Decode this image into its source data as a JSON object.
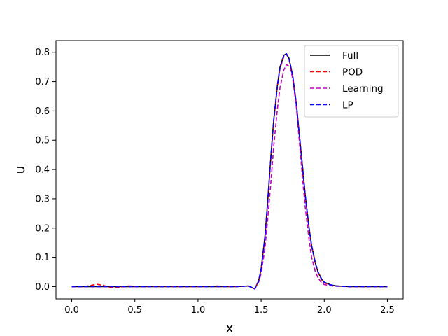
{
  "chart_data": {
    "type": "line",
    "title": "",
    "xlabel": "x",
    "ylabel": "u",
    "xlim": [
      -0.125,
      2.625
    ],
    "ylim": [
      -0.042,
      0.84
    ],
    "xticks": [
      0.0,
      0.5,
      1.0,
      1.5,
      2.0,
      2.5
    ],
    "xtick_labels": [
      "0.0",
      "0.5",
      "1.0",
      "1.5",
      "2.0",
      "2.5"
    ],
    "yticks": [
      0.0,
      0.1,
      0.2,
      0.3,
      0.4,
      0.5,
      0.6,
      0.7,
      0.8
    ],
    "ytick_labels": [
      "0.0",
      "0.1",
      "0.2",
      "0.3",
      "0.4",
      "0.5",
      "0.6",
      "0.7",
      "0.8"
    ],
    "grid": false,
    "legend_position": "top-right",
    "series": [
      {
        "name": "Full",
        "color": "#000000",
        "dashed": false,
        "x": [
          0.0,
          0.5,
          1.0,
          1.3,
          1.4,
          1.45,
          1.48,
          1.5,
          1.53,
          1.55,
          1.58,
          1.6,
          1.63,
          1.65,
          1.68,
          1.7,
          1.72,
          1.75,
          1.78,
          1.8,
          1.83,
          1.85,
          1.88,
          1.9,
          1.93,
          1.95,
          1.98,
          2.0,
          2.05,
          2.1,
          2.2,
          2.5
        ],
        "y": [
          0.0,
          0.0,
          0.0,
          0.0,
          0.002,
          -0.008,
          0.02,
          0.06,
          0.17,
          0.28,
          0.46,
          0.57,
          0.69,
          0.75,
          0.79,
          0.795,
          0.78,
          0.72,
          0.62,
          0.53,
          0.4,
          0.31,
          0.2,
          0.14,
          0.08,
          0.05,
          0.025,
          0.015,
          0.006,
          0.002,
          0.0,
          0.0
        ]
      },
      {
        "name": "POD",
        "color": "#ff0000",
        "dashed": true,
        "x": [
          0.0,
          0.1,
          0.2,
          0.25,
          0.3,
          0.35,
          0.45,
          0.55,
          0.7,
          1.0,
          1.15,
          1.2,
          1.3,
          1.4,
          1.45,
          1.48,
          1.5,
          1.53,
          1.55,
          1.58,
          1.6,
          1.63,
          1.65,
          1.68,
          1.7,
          1.72,
          1.75,
          1.78,
          1.8,
          1.83,
          1.85,
          1.88,
          1.9,
          1.93,
          1.95,
          1.98,
          2.0,
          2.05,
          2.1,
          2.2,
          2.5
        ],
        "y": [
          0.0,
          0.0,
          0.008,
          0.004,
          -0.002,
          -0.004,
          0.002,
          0.001,
          0.0,
          0.0,
          0.002,
          0.001,
          0.0,
          0.002,
          -0.008,
          0.018,
          0.058,
          0.165,
          0.275,
          0.455,
          0.565,
          0.685,
          0.745,
          0.785,
          0.793,
          0.778,
          0.718,
          0.618,
          0.528,
          0.398,
          0.308,
          0.198,
          0.138,
          0.078,
          0.048,
          0.023,
          0.013,
          0.005,
          0.002,
          0.0,
          0.0
        ]
      },
      {
        "name": "Learning",
        "color": "#bf00bf",
        "dashed": true,
        "x": [
          0.0,
          0.5,
          1.0,
          1.3,
          1.4,
          1.45,
          1.48,
          1.5,
          1.53,
          1.55,
          1.58,
          1.6,
          1.63,
          1.65,
          1.68,
          1.7,
          1.73,
          1.75,
          1.78,
          1.8,
          1.83,
          1.85,
          1.88,
          1.9,
          1.93,
          1.95,
          1.98,
          2.0,
          2.05,
          2.1,
          2.2,
          2.5
        ],
        "y": [
          0.0,
          0.0,
          0.0,
          0.0,
          0.002,
          -0.006,
          0.015,
          0.045,
          0.13,
          0.22,
          0.37,
          0.48,
          0.61,
          0.68,
          0.74,
          0.758,
          0.75,
          0.71,
          0.61,
          0.51,
          0.36,
          0.27,
          0.16,
          0.1,
          0.05,
          0.03,
          0.012,
          0.007,
          0.003,
          0.001,
          0.0,
          0.0
        ]
      },
      {
        "name": "LP",
        "color": "#0000ff",
        "dashed": true,
        "x": [
          0.0,
          0.5,
          1.0,
          1.3,
          1.4,
          1.45,
          1.48,
          1.5,
          1.53,
          1.55,
          1.58,
          1.6,
          1.63,
          1.65,
          1.68,
          1.7,
          1.72,
          1.75,
          1.78,
          1.8,
          1.83,
          1.85,
          1.88,
          1.9,
          1.93,
          1.95,
          1.98,
          2.0,
          2.05,
          2.1,
          2.2,
          2.5
        ],
        "y": [
          0.0,
          0.0,
          0.0,
          0.0,
          0.002,
          -0.008,
          0.02,
          0.06,
          0.17,
          0.28,
          0.46,
          0.57,
          0.69,
          0.75,
          0.79,
          0.795,
          0.78,
          0.72,
          0.62,
          0.53,
          0.4,
          0.31,
          0.2,
          0.14,
          0.08,
          0.05,
          0.025,
          0.015,
          0.006,
          0.002,
          0.0,
          0.0
        ]
      }
    ]
  }
}
